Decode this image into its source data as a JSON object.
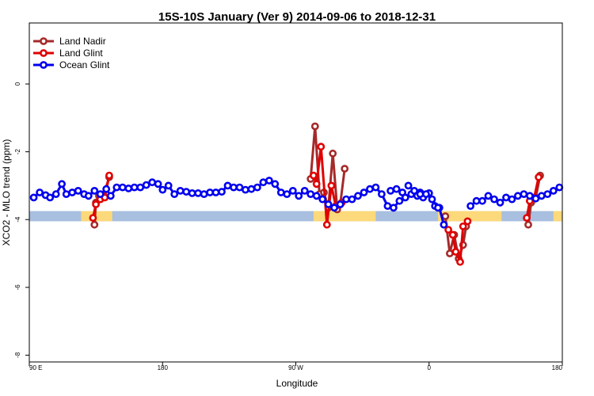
{
  "chart_data": {
    "type": "line",
    "title": "15S-10S January (Ver 9)   2014-09-06 to 2018-12-31",
    "xlabel": "Longitude",
    "ylabel": "XCO2 - MLO trend (ppm)",
    "xlim": [
      90,
      450
    ],
    "ylim": [
      -8.2,
      1.8
    ],
    "x_ticks": [
      {
        "value": 90,
        "label": "90 E"
      },
      {
        "value": 180,
        "label": "180"
      },
      {
        "value": 270,
        "label": "90 W"
      },
      {
        "value": 360,
        "label": "0"
      },
      {
        "value": 450,
        "label": "180"
      }
    ],
    "y_ticks": [
      {
        "value": 0,
        "label": "0"
      },
      {
        "value": -2,
        "label": "-2"
      },
      {
        "value": -4,
        "label": "-4"
      },
      {
        "value": -6,
        "label": "-6"
      },
      {
        "value": -8,
        "label": "-8"
      }
    ],
    "legend": {
      "position": "top-left"
    },
    "grid": false,
    "land_band": {
      "y_bottom": -4.05,
      "y_top": -3.75,
      "ocean_color": "#a8bfdf",
      "land_color": "#fcd97a"
    },
    "land_segments": [
      {
        "x_start": 125,
        "x_end": 146
      },
      {
        "x_start": 282,
        "x_end": 324
      },
      {
        "x_start": 366,
        "x_end": 409
      },
      {
        "x_start": 444,
        "x_end": 451
      }
    ],
    "series": [
      {
        "name": "Land Nadir",
        "color": "#a52a2a",
        "segments": [
          [
            [
              134,
              -4.15
            ],
            [
              135,
              -3.5
            ],
            [
              137,
              -3.3
            ],
            [
              140,
              -3.3
            ],
            [
              144,
              -2.75
            ]
          ],
          [
            [
              280,
              -2.8
            ],
            [
              283,
              -1.25
            ],
            [
              286,
              -3.25
            ],
            [
              289,
              -3.2
            ],
            [
              292,
              -3.65
            ],
            [
              295,
              -2.05
            ],
            [
              298,
              -3.7
            ],
            [
              300,
              -3.55
            ],
            [
              303,
              -2.5
            ]
          ],
          [
            [
              371,
              -3.9
            ],
            [
              374,
              -5.0
            ],
            [
              377,
              -4.45
            ],
            [
              380,
              -5.15
            ],
            [
              383,
              -4.75
            ],
            [
              385,
              -4.2
            ]
          ],
          [
            [
              427,
              -4.15
            ],
            [
              429,
              -3.5
            ],
            [
              432,
              -3.35
            ],
            [
              435,
              -2.7
            ]
          ]
        ]
      },
      {
        "name": "Land Glint",
        "color": "#e00000",
        "segments": [
          [
            [
              133,
              -3.95
            ],
            [
              135,
              -3.55
            ],
            [
              138,
              -3.4
            ],
            [
              141,
              -3.35
            ],
            [
              144,
              -2.7
            ]
          ],
          [
            [
              282,
              -2.7
            ],
            [
              284,
              -2.95
            ],
            [
              287,
              -1.85
            ],
            [
              291,
              -4.15
            ],
            [
              294,
              -3.0
            ],
            [
              297,
              -3.6
            ],
            [
              301,
              -3.5
            ]
          ],
          [
            [
              373,
              -4.3
            ],
            [
              376,
              -4.45
            ],
            [
              378,
              -4.95
            ],
            [
              381,
              -5.25
            ],
            [
              383,
              -4.2
            ],
            [
              386,
              -4.05
            ]
          ],
          [
            [
              426,
              -3.95
            ],
            [
              428,
              -3.45
            ],
            [
              431,
              -3.35
            ],
            [
              434,
              -2.75
            ]
          ]
        ]
      },
      {
        "name": "Ocean Glint",
        "color": "#0000ee",
        "segments": [
          [
            [
              93,
              -3.35
            ],
            [
              97,
              -3.2
            ],
            [
              101,
              -3.28
            ],
            [
              104,
              -3.35
            ],
            [
              108,
              -3.25
            ],
            [
              112,
              -2.95
            ],
            [
              115,
              -3.25
            ],
            [
              119,
              -3.2
            ],
            [
              123,
              -3.15
            ],
            [
              127,
              -3.25
            ],
            [
              130,
              -3.3
            ],
            [
              134,
              -3.15
            ],
            [
              138,
              -3.25
            ],
            [
              142,
              -3.1
            ],
            [
              145,
              -3.3
            ],
            [
              149,
              -3.05
            ],
            [
              153,
              -3.05
            ],
            [
              157,
              -3.08
            ],
            [
              161,
              -3.05
            ],
            [
              165,
              -3.05
            ],
            [
              169,
              -2.98
            ],
            [
              173,
              -2.9
            ],
            [
              177,
              -2.95
            ],
            [
              180,
              -3.12
            ],
            [
              184,
              -3.0
            ],
            [
              188,
              -3.25
            ],
            [
              192,
              -3.15
            ],
            [
              196,
              -3.18
            ],
            [
              200,
              -3.22
            ],
            [
              204,
              -3.22
            ],
            [
              208,
              -3.25
            ],
            [
              212,
              -3.2
            ],
            [
              216,
              -3.2
            ],
            [
              220,
              -3.18
            ],
            [
              224,
              -3.0
            ],
            [
              228,
              -3.05
            ],
            [
              232,
              -3.05
            ],
            [
              236,
              -3.12
            ],
            [
              240,
              -3.1
            ],
            [
              244,
              -3.05
            ],
            [
              248,
              -2.9
            ],
            [
              252,
              -2.85
            ],
            [
              256,
              -2.95
            ],
            [
              260,
              -3.2
            ],
            [
              264,
              -3.25
            ],
            [
              268,
              -3.15
            ],
            [
              272,
              -3.3
            ],
            [
              276,
              -3.15
            ],
            [
              280,
              -3.25
            ],
            [
              284,
              -3.3
            ],
            [
              288,
              -3.4
            ],
            [
              292,
              -3.55
            ],
            [
              296,
              -3.65
            ],
            [
              300,
              -3.55
            ],
            [
              304,
              -3.4
            ],
            [
              308,
              -3.4
            ],
            [
              312,
              -3.3
            ],
            [
              316,
              -3.2
            ],
            [
              320,
              -3.1
            ],
            [
              324,
              -3.05
            ],
            [
              328,
              -3.25
            ],
            [
              332,
              -3.6
            ],
            [
              336,
              -3.65
            ],
            [
              340,
              -3.45
            ],
            [
              344,
              -3.35
            ],
            [
              348,
              -3.25
            ],
            [
              352,
              -3.3
            ],
            [
              356,
              -3.35
            ],
            [
              360,
              -3.22
            ],
            [
              364,
              -3.6
            ],
            [
              367,
              -3.65
            ],
            [
              370,
              -4.15
            ]
          ],
          [
            [
              388,
              -3.6
            ],
            [
              392,
              -3.45
            ],
            [
              396,
              -3.45
            ],
            [
              400,
              -3.3
            ],
            [
              404,
              -3.4
            ],
            [
              408,
              -3.5
            ],
            [
              412,
              -3.35
            ],
            [
              416,
              -3.4
            ],
            [
              420,
              -3.3
            ],
            [
              424,
              -3.25
            ],
            [
              428,
              -3.3
            ],
            [
              432,
              -3.38
            ],
            [
              436,
              -3.3
            ],
            [
              440,
              -3.25
            ],
            [
              444,
              -3.15
            ],
            [
              448,
              -3.05
            ]
          ],
          [
            [
              346,
              -3.0
            ],
            [
              350,
              -3.15
            ],
            [
              354,
              -3.2
            ],
            [
              358,
              -3.25
            ],
            [
              362,
              -3.4
            ],
            [
              366,
              -3.65
            ]
          ],
          [
            [
              334,
              -3.15
            ],
            [
              338,
              -3.1
            ],
            [
              342,
              -3.2
            ]
          ],
          [
            [
              354,
              -3.25
            ]
          ]
        ]
      }
    ]
  }
}
